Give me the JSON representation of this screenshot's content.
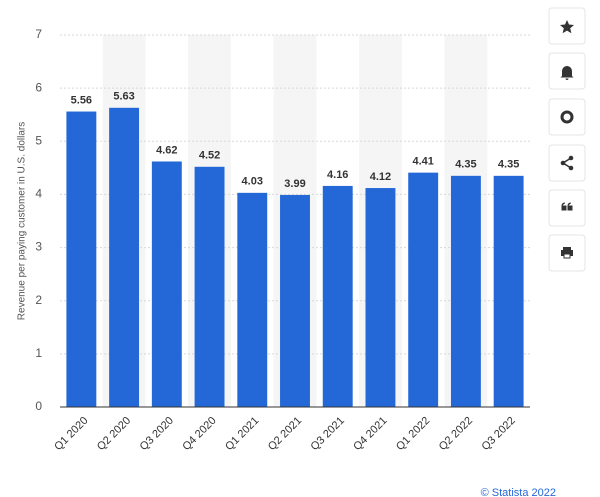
{
  "chart_data": {
    "type": "bar",
    "y_axis_label": "Revenue per paying customer in U.S. dollars",
    "categories": [
      "Q1 2020",
      "Q2 2020",
      "Q3 2020",
      "Q4 2020",
      "Q1 2021",
      "Q2 2021",
      "Q3 2021",
      "Q4 2021",
      "Q1 2022",
      "Q2 2022",
      "Q3 2022"
    ],
    "values": [
      5.56,
      5.63,
      4.62,
      4.52,
      4.03,
      3.99,
      4.16,
      4.12,
      4.41,
      4.35,
      4.35
    ],
    "color": "#2468d8",
    "ylim": [
      0,
      7
    ],
    "yticks": [
      0,
      1,
      2,
      3,
      4,
      5,
      6,
      7
    ],
    "grid": true,
    "footer": "© Statista 2022"
  }
}
